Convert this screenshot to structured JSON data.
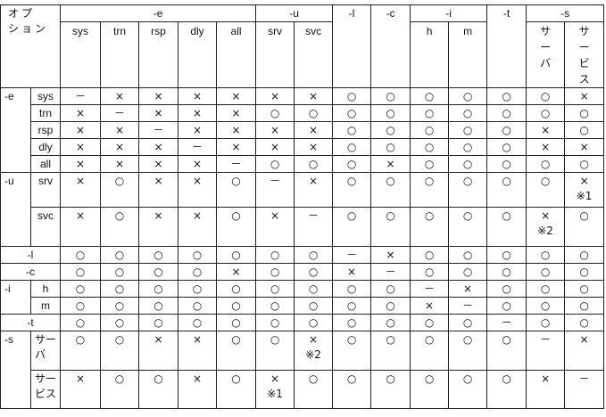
{
  "corner_label": "オプ\nション",
  "column_groups": [
    {
      "label": "-e",
      "subs": [
        "sys",
        "trn",
        "rsp",
        "dly",
        "all"
      ]
    },
    {
      "label": "-u",
      "subs": [
        "srv",
        "svc"
      ]
    },
    {
      "label": "-l",
      "subs": []
    },
    {
      "label": "-c",
      "subs": []
    },
    {
      "label": "-i",
      "subs": [
        "h",
        "m"
      ]
    },
    {
      "label": "-t",
      "subs": []
    },
    {
      "label": "-s",
      "subs": [
        "サ\nー\nバ",
        "サ\nー\nビ\nス"
      ]
    }
  ],
  "row_groups": [
    {
      "label": "-e",
      "rows": [
        {
          "label": "sys",
          "cells": [
            "－",
            "×",
            "×",
            "×",
            "×",
            "×",
            "×",
            "○",
            "○",
            "○",
            "○",
            "○",
            "○",
            "×"
          ]
        },
        {
          "label": "trn",
          "cells": [
            "×",
            "－",
            "×",
            "×",
            "×",
            "○",
            "○",
            "○",
            "○",
            "○",
            "○",
            "○",
            "○",
            "○"
          ]
        },
        {
          "label": "rsp",
          "cells": [
            "×",
            "×",
            "－",
            "×",
            "×",
            "×",
            "×",
            "○",
            "○",
            "○",
            "○",
            "○",
            "×",
            "○"
          ]
        },
        {
          "label": "dly",
          "cells": [
            "×",
            "×",
            "×",
            "－",
            "×",
            "×",
            "×",
            "○",
            "○",
            "○",
            "○",
            "○",
            "×",
            "×"
          ]
        },
        {
          "label": "all",
          "cells": [
            "×",
            "×",
            "×",
            "×",
            "－",
            "○",
            "○",
            "○",
            "×",
            "○",
            "○",
            "○",
            "○",
            "○"
          ]
        }
      ]
    },
    {
      "label": "-u",
      "rows": [
        {
          "label": "srv",
          "cells": [
            "×",
            "○",
            "×",
            "×",
            "○",
            "－",
            "×",
            "○",
            "○",
            "○",
            "○",
            "○",
            "○",
            "×\n※1"
          ]
        },
        {
          "label": "svc",
          "cells": [
            "×",
            "○",
            "×",
            "×",
            "○",
            "×",
            "－",
            "○",
            "○",
            "○",
            "○",
            "○",
            "×\n※2",
            "○"
          ]
        }
      ]
    },
    {
      "label": "-l",
      "rows": [
        {
          "label": "",
          "cells": [
            "○",
            "○",
            "○",
            "○",
            "○",
            "○",
            "○",
            "－",
            "×",
            "○",
            "○",
            "○",
            "○",
            "○"
          ]
        }
      ]
    },
    {
      "label": "-c",
      "rows": [
        {
          "label": "",
          "cells": [
            "○",
            "○",
            "○",
            "○",
            "×",
            "○",
            "○",
            "×",
            "－",
            "○",
            "○",
            "○",
            "○",
            "○"
          ]
        }
      ]
    },
    {
      "label": "-i",
      "rows": [
        {
          "label": "h",
          "cells": [
            "○",
            "○",
            "○",
            "○",
            "○",
            "○",
            "○",
            "○",
            "○",
            "－",
            "×",
            "○",
            "○",
            "○"
          ]
        },
        {
          "label": "m",
          "cells": [
            "○",
            "○",
            "○",
            "○",
            "○",
            "○",
            "○",
            "○",
            "○",
            "×",
            "－",
            "○",
            "○",
            "○"
          ]
        }
      ]
    },
    {
      "label": "-t",
      "rows": [
        {
          "label": "",
          "cells": [
            "○",
            "○",
            "○",
            "○",
            "○",
            "○",
            "○",
            "○",
            "○",
            "○",
            "○",
            "－",
            "○",
            "○"
          ]
        }
      ]
    },
    {
      "label": "-s",
      "rows": [
        {
          "label": "サー\nバ",
          "cells": [
            "○",
            "○",
            "×",
            "×",
            "○",
            "○",
            "×\n※2",
            "○",
            "○",
            "○",
            "○",
            "○",
            "－",
            "×"
          ]
        },
        {
          "label": "サー\nビス",
          "cells": [
            "×",
            "○",
            "○",
            "×",
            "○",
            "×\n※1",
            "○",
            "○",
            "○",
            "○",
            "○",
            "○",
            "×",
            "－"
          ]
        }
      ]
    }
  ]
}
